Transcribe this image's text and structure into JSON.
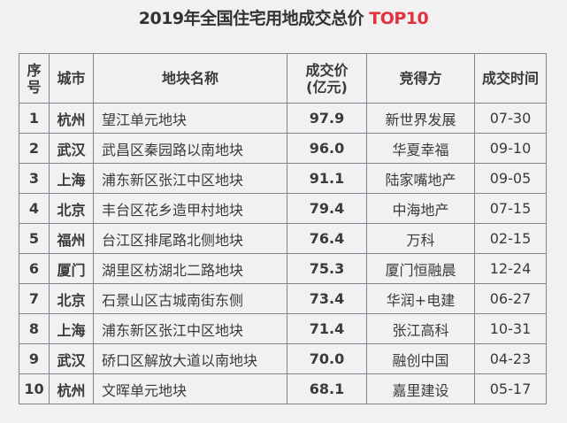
{
  "title": {
    "main": "2019年全国住宅用地成交总价 ",
    "highlight": "TOP10",
    "highlight_color": "#e2313f"
  },
  "table": {
    "headers": {
      "rank": "序号",
      "city": "城市",
      "parcel": "地块名称",
      "price": "成交价(亿元)",
      "buyer": "竞得方",
      "date": "成交时间"
    },
    "rows": [
      {
        "rank": "1",
        "city": "杭州",
        "parcel": "望江单元地块",
        "price": "97.9",
        "buyer": "新世界发展",
        "date": "07-30"
      },
      {
        "rank": "2",
        "city": "武汉",
        "parcel": "武昌区秦园路以南地块",
        "price": "96.0",
        "buyer": "华夏幸福",
        "date": "09-10"
      },
      {
        "rank": "3",
        "city": "上海",
        "parcel": "浦东新区张江中区地块",
        "price": "91.1",
        "buyer": "陆家嘴地产",
        "date": "09-05"
      },
      {
        "rank": "4",
        "city": "北京",
        "parcel": "丰台区花乡造甲村地块",
        "price": "79.4",
        "buyer": "中海地产",
        "date": "07-15"
      },
      {
        "rank": "5",
        "city": "福州",
        "parcel": "台江区排尾路北侧地块",
        "price": "76.4",
        "buyer": "万科",
        "date": "02-15"
      },
      {
        "rank": "6",
        "city": "厦门",
        "parcel": "湖里区枋湖北二路地块",
        "price": "75.3",
        "buyer": "厦门恒融晨",
        "date": "12-24"
      },
      {
        "rank": "7",
        "city": "北京",
        "parcel": "石景山区古城南街东侧",
        "price": "73.4",
        "buyer": "华润+电建",
        "date": "06-27"
      },
      {
        "rank": "8",
        "city": "上海",
        "parcel": "浦东新区张江中区地块",
        "price": "71.4",
        "buyer": "张江高科",
        "date": "10-31"
      },
      {
        "rank": "9",
        "city": "武汉",
        "parcel": "硚口区解放大道以南地块",
        "price": "70.0",
        "buyer": "融创中国",
        "date": "04-23"
      },
      {
        "rank": "10",
        "city": "杭州",
        "parcel": "文晖单元地块",
        "price": "68.1",
        "buyer": "嘉里建设",
        "date": "05-17"
      }
    ]
  }
}
